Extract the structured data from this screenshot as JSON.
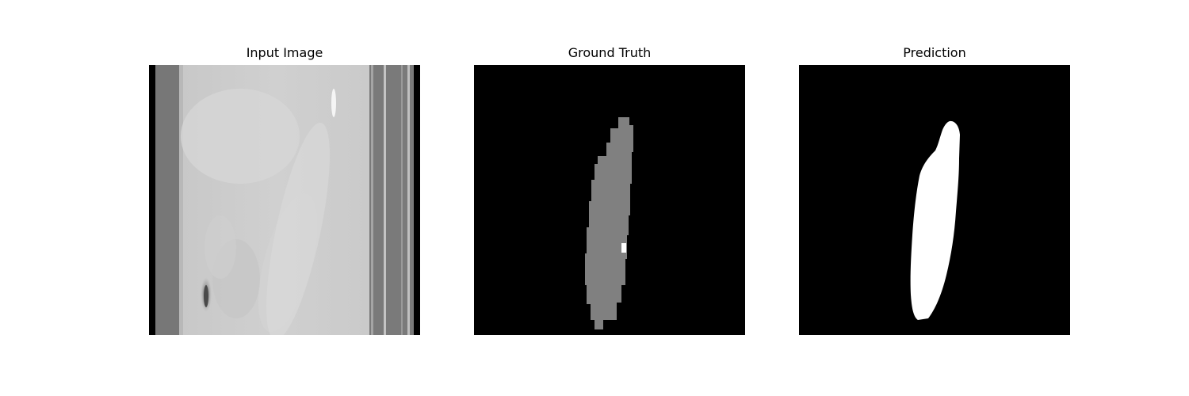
{
  "figure": {
    "panels": [
      {
        "title": "Input Image",
        "content": "ct-slice"
      },
      {
        "title": "Ground Truth",
        "content": "segmentation-mask-gray"
      },
      {
        "title": "Prediction",
        "content": "segmentation-mask-white"
      }
    ],
    "colors": {
      "background": "#ffffff",
      "mask_background": "#000000",
      "ground_truth_fill": "#808080",
      "prediction_fill": "#ffffff",
      "ct_tissue": "#cfcfcf"
    }
  }
}
